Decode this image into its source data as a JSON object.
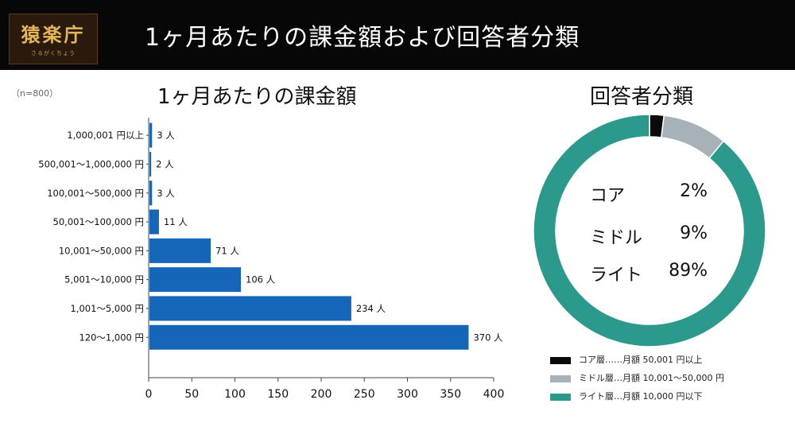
{
  "header": {
    "title": "1ヶ月あたりの課金額および回答者分類",
    "logo_text": "猿楽庁",
    "logo_sub": "さるがくちょう"
  },
  "sample_note": "（n=800）",
  "chart_data": [
    {
      "type": "bar",
      "orientation": "horizontal",
      "title": "1ヶ月あたりの課金額",
      "categories": [
        "1,000,001 円以上",
        "500,001〜1,000,000 円",
        "100,001〜500,000 円",
        "50,001〜100,000 円",
        "10,001〜50,000 円",
        "5,001〜10,000 円",
        "1,001〜5,000 円",
        "120〜1,000 円"
      ],
      "values": [
        3,
        2,
        3,
        11,
        71,
        106,
        234,
        370
      ],
      "value_suffix": " 人",
      "xlim": [
        0,
        400
      ],
      "xticks": [
        0,
        50,
        100,
        150,
        200,
        250,
        300,
        350,
        400
      ],
      "grid": false,
      "bar_color": "#1565b8"
    },
    {
      "type": "pie",
      "donut": true,
      "title": "回答者分類",
      "slices": [
        {
          "label": "コア",
          "value": 2,
          "display": "2%",
          "color": "#0a0a0a"
        },
        {
          "label": "ミドル",
          "value": 9,
          "display": "9%",
          "color": "#a7b1b8"
        },
        {
          "label": "ライト",
          "value": 89,
          "display": "89%",
          "color": "#2b9a8c"
        }
      ],
      "legend_position": "bottom",
      "legend": [
        {
          "text": "コア層……月額 50,001 円以上",
          "color": "#0a0a0a"
        },
        {
          "text": "ミドル層…月額 10,001〜50,000 円",
          "color": "#a7b1b8"
        },
        {
          "text": "ライト層…月額 10,000 円以下",
          "color": "#2b9a8c"
        }
      ]
    }
  ]
}
